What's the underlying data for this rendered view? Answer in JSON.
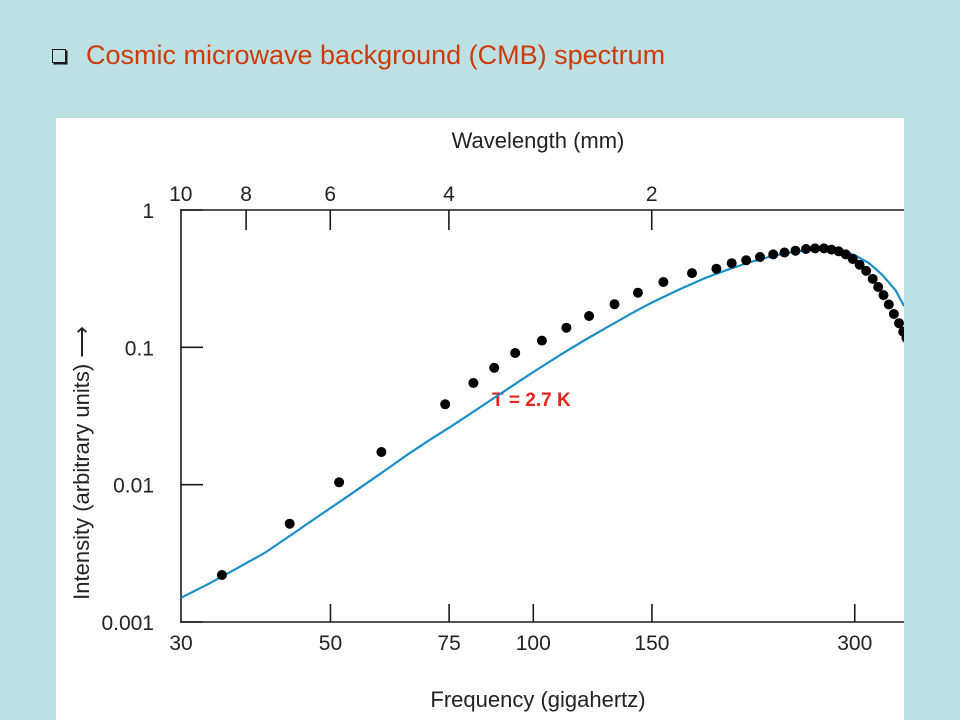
{
  "slide": {
    "title": "Cosmic microwave background (CMB) spectrum",
    "bullet_icon": "hollow-square-bullet-icon",
    "title_color": "#cc3c0a",
    "background_color": "#bde0e3"
  },
  "chart_data": {
    "type": "scatter",
    "title": "",
    "xlabel": "Frequency (gigahertz)",
    "ylabel": "Intensity (arbitrary units) ⟶",
    "top_axis_label": "Wavelength (mm)",
    "x_scale": "log",
    "y_scale": "log",
    "xlim": [
      30,
      355
    ],
    "ylim": [
      0.001,
      1
    ],
    "x_ticks": [
      30,
      50,
      75,
      100,
      150,
      300
    ],
    "x_tick_labels": [
      "30",
      "50",
      "75",
      "100",
      "150",
      "300"
    ],
    "x_tick_marks": [
      50,
      75,
      100,
      150,
      300
    ],
    "y_ticks": [
      0.001,
      0.01,
      0.1,
      1
    ],
    "y_tick_labels": [
      "0.001",
      "0.01",
      "0.1",
      "1"
    ],
    "top_ticks_mm": [
      10,
      8,
      6,
      4,
      2
    ],
    "top_tick_labels": [
      "10",
      "8",
      "6",
      "4",
      "2"
    ],
    "top_tick_marks_mm": [
      8,
      6,
      4,
      2
    ],
    "grid": false,
    "annotation": {
      "text": "T = 2.7 K",
      "color": "#e8231b"
    },
    "series": [
      {
        "kind": "curve",
        "color": "#1b8ec8",
        "x": [
          30,
          33,
          36,
          40,
          44,
          48,
          52,
          56,
          60,
          65,
          70,
          75,
          80,
          85,
          90,
          95,
          100,
          110,
          120,
          130,
          140,
          150,
          165,
          180,
          195,
          210,
          225,
          240,
          255,
          270,
          285,
          300,
          315,
          330,
          345,
          355
        ],
        "y": [
          0.0015,
          0.0019,
          0.0024,
          0.0032,
          0.0044,
          0.0059,
          0.0077,
          0.0099,
          0.0125,
          0.0165,
          0.021,
          0.026,
          0.032,
          0.039,
          0.047,
          0.056,
          0.066,
          0.089,
          0.115,
          0.144,
          0.177,
          0.212,
          0.265,
          0.32,
          0.37,
          0.418,
          0.458,
          0.49,
          0.51,
          0.52,
          0.508,
          0.47,
          0.41,
          0.335,
          0.26,
          0.2
        ]
      },
      {
        "kind": "points",
        "color": "#000000",
        "x": [
          34.5,
          43.5,
          51.5,
          59.5,
          74,
          81.5,
          87.5,
          94,
          103,
          112,
          121,
          132,
          143,
          156,
          172,
          187,
          197,
          207,
          217,
          227,
          236,
          245,
          254,
          262,
          270,
          277,
          284,
          291,
          298,
          305,
          312,
          319,
          325,
          331,
          337,
          343,
          349,
          354,
          358
        ],
        "y": [
          0.0022,
          0.0052,
          0.0104,
          0.0173,
          0.0385,
          0.055,
          0.071,
          0.091,
          0.112,
          0.139,
          0.169,
          0.206,
          0.25,
          0.299,
          0.347,
          0.374,
          0.41,
          0.43,
          0.455,
          0.475,
          0.49,
          0.505,
          0.52,
          0.525,
          0.525,
          0.515,
          0.5,
          0.475,
          0.44,
          0.4,
          0.36,
          0.315,
          0.275,
          0.24,
          0.205,
          0.175,
          0.15,
          0.13,
          0.117
        ]
      }
    ]
  }
}
